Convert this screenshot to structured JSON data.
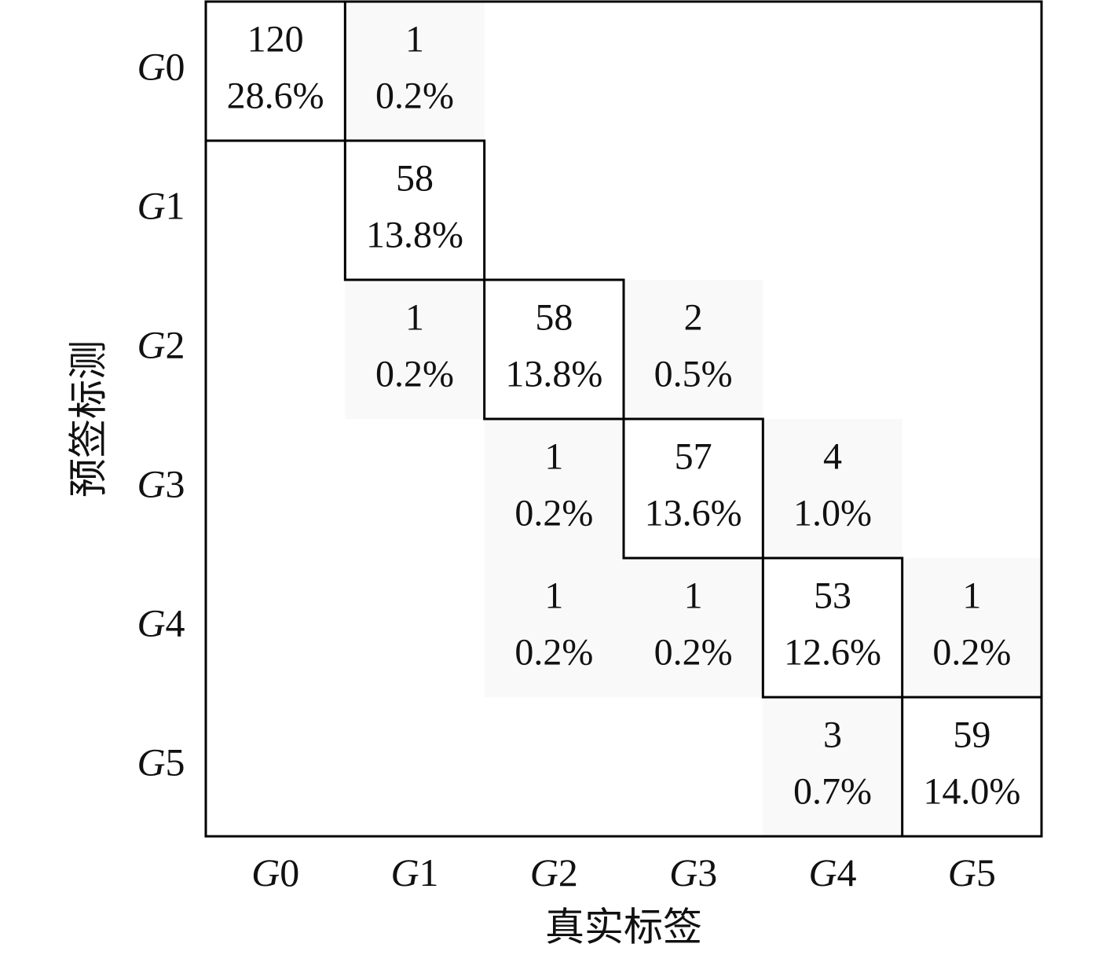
{
  "chart_data": {
    "type": "heatmap",
    "x_label": "真实标签",
    "y_label": "预签标测",
    "x_categories": [
      "G0",
      "G1",
      "G2",
      "G3",
      "G4",
      "G5"
    ],
    "y_categories": [
      "G0",
      "G1",
      "G2",
      "G3",
      "G4",
      "G5"
    ],
    "values": [
      [
        120,
        1,
        null,
        null,
        null,
        null
      ],
      [
        null,
        58,
        null,
        null,
        null,
        null
      ],
      [
        null,
        1,
        58,
        2,
        null,
        null
      ],
      [
        null,
        null,
        1,
        57,
        4,
        null
      ],
      [
        null,
        null,
        1,
        1,
        53,
        1
      ],
      [
        null,
        null,
        null,
        null,
        3,
        59
      ]
    ],
    "percent_values": [
      [
        28.6,
        0.2,
        null,
        null,
        null,
        null
      ],
      [
        null,
        13.8,
        null,
        null,
        null,
        null
      ],
      [
        null,
        0.2,
        13.8,
        0.5,
        null,
        null
      ],
      [
        null,
        null,
        0.2,
        13.6,
        1.0,
        null
      ],
      [
        null,
        null,
        0.2,
        0.2,
        12.6,
        0.2
      ],
      [
        null,
        null,
        null,
        null,
        0.7,
        14.0
      ]
    ],
    "percent_labels": [
      [
        "28.6%",
        "0.2%",
        null,
        null,
        null,
        null
      ],
      [
        null,
        "13.8%",
        null,
        null,
        null,
        null
      ],
      [
        null,
        "0.2%",
        "13.8%",
        "0.5%",
        null,
        null
      ],
      [
        null,
        null,
        "0.2%",
        "13.6%",
        "1.0%",
        null
      ],
      [
        null,
        null,
        "0.2%",
        "0.2%",
        "12.6%",
        "0.2%"
      ],
      [
        null,
        null,
        null,
        null,
        "0.7%",
        "14.0%"
      ]
    ],
    "diagonal_color": "#ffffff",
    "off_diagonal_color": "#f9f9f9",
    "border_color": "#000000"
  }
}
